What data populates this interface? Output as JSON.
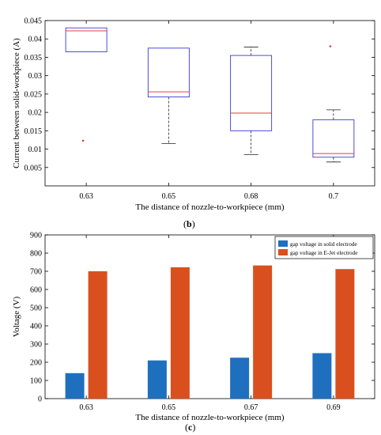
{
  "figure": {
    "label_b": "b",
    "label_c": "c"
  },
  "chart_data": [
    {
      "type": "box",
      "title": "",
      "xlabel": "The distance of nozzle-to-workpiece (mm)",
      "ylabel": "Current between solid-workpiece (A)",
      "categories": [
        "0.63",
        "0.65",
        "0.68",
        "0.7"
      ],
      "ylim": [
        0.0,
        0.045
      ],
      "yticks": [
        "0.005",
        "0.01",
        "0.015",
        "0.02",
        "0.025",
        "0.03",
        "0.035",
        "0.04",
        "0.045"
      ],
      "boxes": [
        {
          "category": "0.63",
          "whisker_low": 0.0365,
          "q1": 0.0365,
          "median": 0.0422,
          "q3": 0.043,
          "whisker_high": 0.043,
          "outliers": [
            0.0123
          ]
        },
        {
          "category": "0.65",
          "whisker_low": 0.0115,
          "q1": 0.0242,
          "median": 0.0256,
          "q3": 0.0375,
          "whisker_high": 0.0375,
          "outliers": []
        },
        {
          "category": "0.68",
          "whisker_low": 0.0085,
          "q1": 0.015,
          "median": 0.0198,
          "q3": 0.0355,
          "whisker_high": 0.0378,
          "outliers": []
        },
        {
          "category": "0.7",
          "whisker_low": 0.0065,
          "q1": 0.0078,
          "median": 0.0088,
          "q3": 0.018,
          "whisker_high": 0.0207,
          "outliers": [
            0.038
          ]
        }
      ],
      "colors": {
        "box": "#3a3ad6",
        "median": "#e0403a",
        "whisker": "#222222",
        "outlier": "#e0403a"
      },
      "grid": false
    },
    {
      "type": "bar",
      "title": "",
      "xlabel": "The distance of nozzle-to-workpiece (mm)",
      "ylabel": "Voltage (V)",
      "categories": [
        "0.63",
        "0.65",
        "0.67",
        "0.69"
      ],
      "ylim": [
        0,
        900
      ],
      "yticks": [
        "0",
        "100",
        "200",
        "300",
        "400",
        "500",
        "600",
        "700",
        "800",
        "900"
      ],
      "series": [
        {
          "name": "gap voltage in solid electrode",
          "values": [
            140,
            210,
            225,
            250
          ],
          "color": "#1f6fbf"
        },
        {
          "name": "gap voltage in E-Jet electrode",
          "values": [
            700,
            722,
            732,
            712
          ],
          "color": "#d9501e"
        }
      ],
      "legend": "top-right",
      "grid": false
    }
  ]
}
